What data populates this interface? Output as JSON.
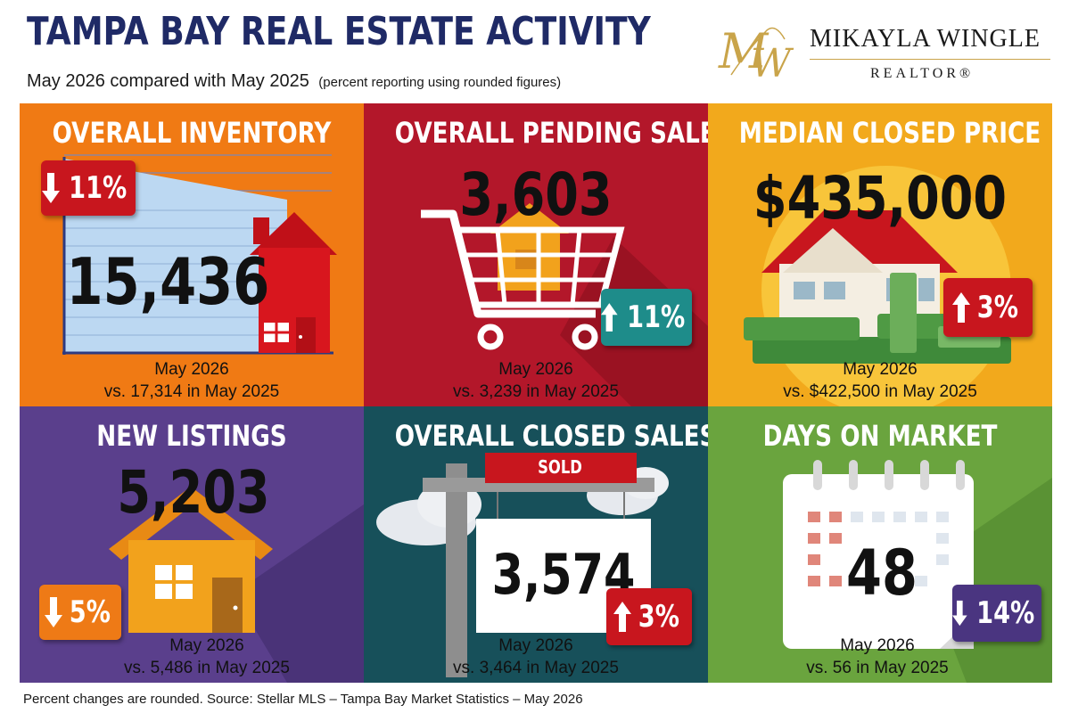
{
  "header": {
    "title": "TAMPA BAY REAL ESTATE ACTIVITY",
    "subtitle": "May 2026 compared with May 2025",
    "subtitle_note": "(percent reporting using rounded figures)"
  },
  "brand": {
    "monogram": "MW",
    "name": "MIKAYLA WINGLE",
    "role": "REALTOR®"
  },
  "colors": {
    "title_navy": "#1f2a66",
    "orange": "#f07a14",
    "crimson": "#b3172a",
    "gold": "#f2a91c",
    "purple": "#5a3f8c",
    "teal": "#17505a",
    "green": "#6aa43e",
    "badge_red": "#c8161e",
    "badge_teal": "#1e8c8a",
    "badge_orange": "#ee7a16",
    "badge_purple": "#4a3580",
    "accent_gold": "#c9a44a"
  },
  "panels": [
    {
      "title": "OVERALL INVENTORY",
      "value": "15,436",
      "change": "11%",
      "direction": "down",
      "line1": "May 2026",
      "line2": "vs. 17,314 in May 2025",
      "icon": "house-chart-icon"
    },
    {
      "title": "OVERALL PENDING SALES",
      "value": "3,603",
      "change": "11%",
      "direction": "up",
      "line1": "May 2026",
      "line2": "vs. 3,239 in May 2025",
      "icon": "shopping-cart-icon"
    },
    {
      "title": "MEDIAN CLOSED PRICE",
      "value": "$435,000",
      "change": "3%",
      "direction": "up",
      "line1": "May 2026",
      "line2": "vs. $422,500 in May 2025",
      "icon": "house-money-icon"
    },
    {
      "title": "NEW LISTINGS",
      "value": "5,203",
      "change": "5%",
      "direction": "down",
      "line1": "May 2026",
      "line2": "vs. 5,486 in May 2025",
      "icon": "house-icon"
    },
    {
      "title": "OVERALL CLOSED SALES",
      "value": "3,574",
      "change": "3%",
      "direction": "up",
      "sign_label": "SOLD",
      "line1": "May 2026",
      "line2": "vs. 3,464 in May 2025",
      "icon": "sold-sign-icon"
    },
    {
      "title": "DAYS ON MARKET",
      "value": "48",
      "change": "14%",
      "direction": "down",
      "line1": "May 2026",
      "line2": "vs. 56 in May 2025",
      "icon": "calendar-icon"
    }
  ],
  "source": "Percent changes are rounded.  Source: Stellar MLS – Tampa Bay Market Statistics – May 2026"
}
